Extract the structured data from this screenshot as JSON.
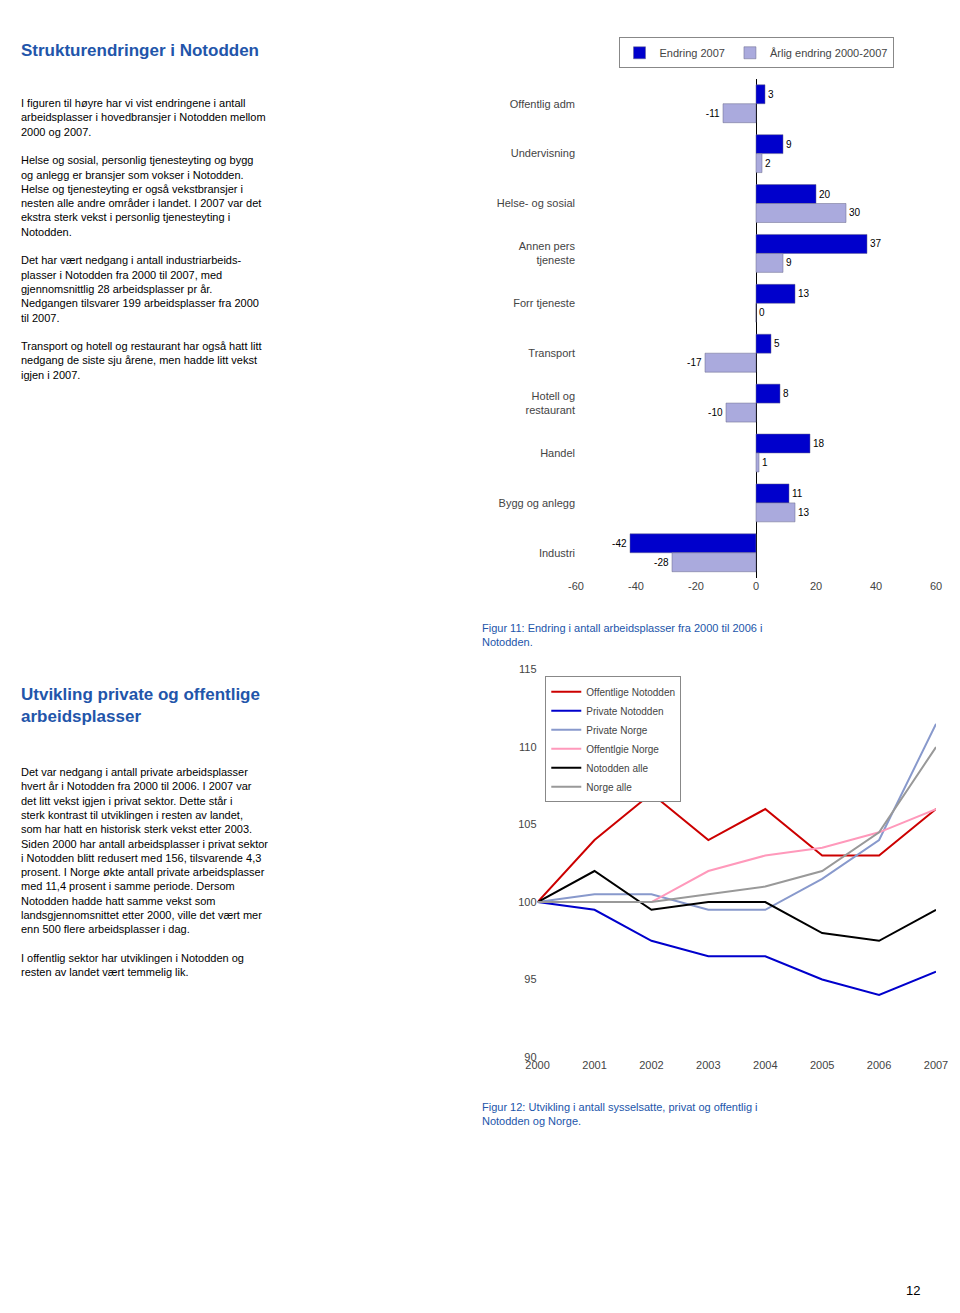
{
  "chart_data": [
    {
      "type": "bar",
      "orientation": "horizontal",
      "title": "Figur 11: Endring i antall arbeidsplasser fra 2000 til 2006 i\nNotodden.",
      "categories": [
        "Offentlig adm",
        "Undervisning",
        "Helse- og sosial",
        "Annen pers\ntjeneste",
        "Forr tjeneste",
        "Transport",
        "Hotell og\nrestaurant",
        "Handel",
        "Bygg og anlegg",
        "Industri"
      ],
      "series": [
        {
          "name": "Endring 2007",
          "color": "#0000CC",
          "values": [
            3,
            9,
            20,
            37,
            13,
            5,
            8,
            18,
            11,
            -42
          ]
        },
        {
          "name": "Årlig endring 2000-2007",
          "color": "#AAAADD",
          "values": [
            -11,
            2,
            30,
            9,
            0,
            -17,
            -10,
            1,
            13,
            -28
          ]
        }
      ],
      "xlim": [
        -60,
        60
      ],
      "xticks": [
        -60,
        -40,
        -20,
        0,
        20,
        40,
        60
      ],
      "data_labels": true,
      "grid": false,
      "legend": "top",
      "annotations": [
        "Strukturendringer i Notodden",
        "I figuren til høyre har vi vist endringene i antall\narbeidsplasser i hovedbransjer i Notodden mellom\n2000 og 2007.\n\nHelse og sosial, personlig tjenesteyting og bygg\nog anlegg er bransjer som vokser i Notodden.\nHelse og tjenesteyting er også vekstbransjer i\nnesten alle andre områder i landet. I 2007 var det\nekstra sterk vekst i personlig tjenesteyting i\nNotodden.\n\nDet har vært nedgang i antall industriarbeids-\nplasser i Notodden fra 2000 til 2007, med\ngjennomsnittlig 28 arbeidsplasser pr år.\nNedgangen tilsvarer 199 arbeidsplasser fra 2000\ntil 2007.\n\nTransport og hotell og restaurant har også hatt litt\nnedgang de siste sju årene, men hadde litt vekst\nigjen i 2007."
      ]
    },
    {
      "type": "line",
      "title": "Figur 12: Utvikling i antall sysselsatte, privat og offentlig i\nNotodden og Norge.",
      "x": [
        2000,
        2001,
        2002,
        2003,
        2004,
        2005,
        2006,
        2007
      ],
      "series": [
        {
          "name": "Offentlige Notodden",
          "color": "#CC0000",
          "values": [
            100,
            104,
            107,
            104,
            106,
            103,
            103,
            106
          ]
        },
        {
          "name": "Private Notodden",
          "color": "#0000CC",
          "values": [
            100,
            99.5,
            97.5,
            96.5,
            96.5,
            95,
            94,
            95.5
          ]
        },
        {
          "name": "Private Norge",
          "color": "#8899CC",
          "values": [
            100,
            100.5,
            100.5,
            99.5,
            99.5,
            101.5,
            104,
            111.5
          ]
        },
        {
          "name": "Offentlgie Norge",
          "color": "#FF99BB",
          "values": [
            100,
            100,
            100,
            102,
            103,
            103.5,
            104.5,
            106
          ]
        },
        {
          "name": "Notodden alle",
          "color": "#000000",
          "values": [
            100,
            102,
            99.5,
            100,
            100,
            98,
            97.5,
            99.5
          ]
        },
        {
          "name": "Norge alle",
          "color": "#999999",
          "values": [
            100,
            100,
            100,
            100.5,
            101,
            102,
            104.5,
            110
          ]
        }
      ],
      "xlim": [
        2000,
        2007
      ],
      "xticks": [
        2000,
        2001,
        2002,
        2003,
        2004,
        2005,
        2006,
        2007
      ],
      "ylim": [
        90,
        115
      ],
      "yticks": [
        90,
        95,
        100,
        105,
        110,
        115
      ],
      "grid": false,
      "legend": "upper left",
      "annotations": [
        "Utvikling private og offentlige\narbeidsplasser",
        "Det var nedgang i antall private arbeidsplasser\nhvert år i Notodden fra 2000 til 2006. I 2007 var\ndet litt vekst igjen i privat sektor. Dette står i\nsterk kontrast til utviklingen i resten av landet,\nsom har hatt en historisk sterk vekst etter 2003.\nSiden 2000 har antall arbeidsplasser i privat sektor\ni Notodden blitt redusert med 156, tilsvarende 4,3\nprosent. I Norge økte antall private arbeidsplasser\nmed 11,4 prosent i samme periode. Dersom\nNotodden hadde hatt samme vekst som\nlandsgjennomsnittet etter 2000, ville det vært mer\nenn 500 flere arbeidsplasser i dag.\n\nI offentlig sektor har utviklingen i Notodden og\nresten av landet vært temmelig lik.",
        "12"
      ]
    }
  ]
}
